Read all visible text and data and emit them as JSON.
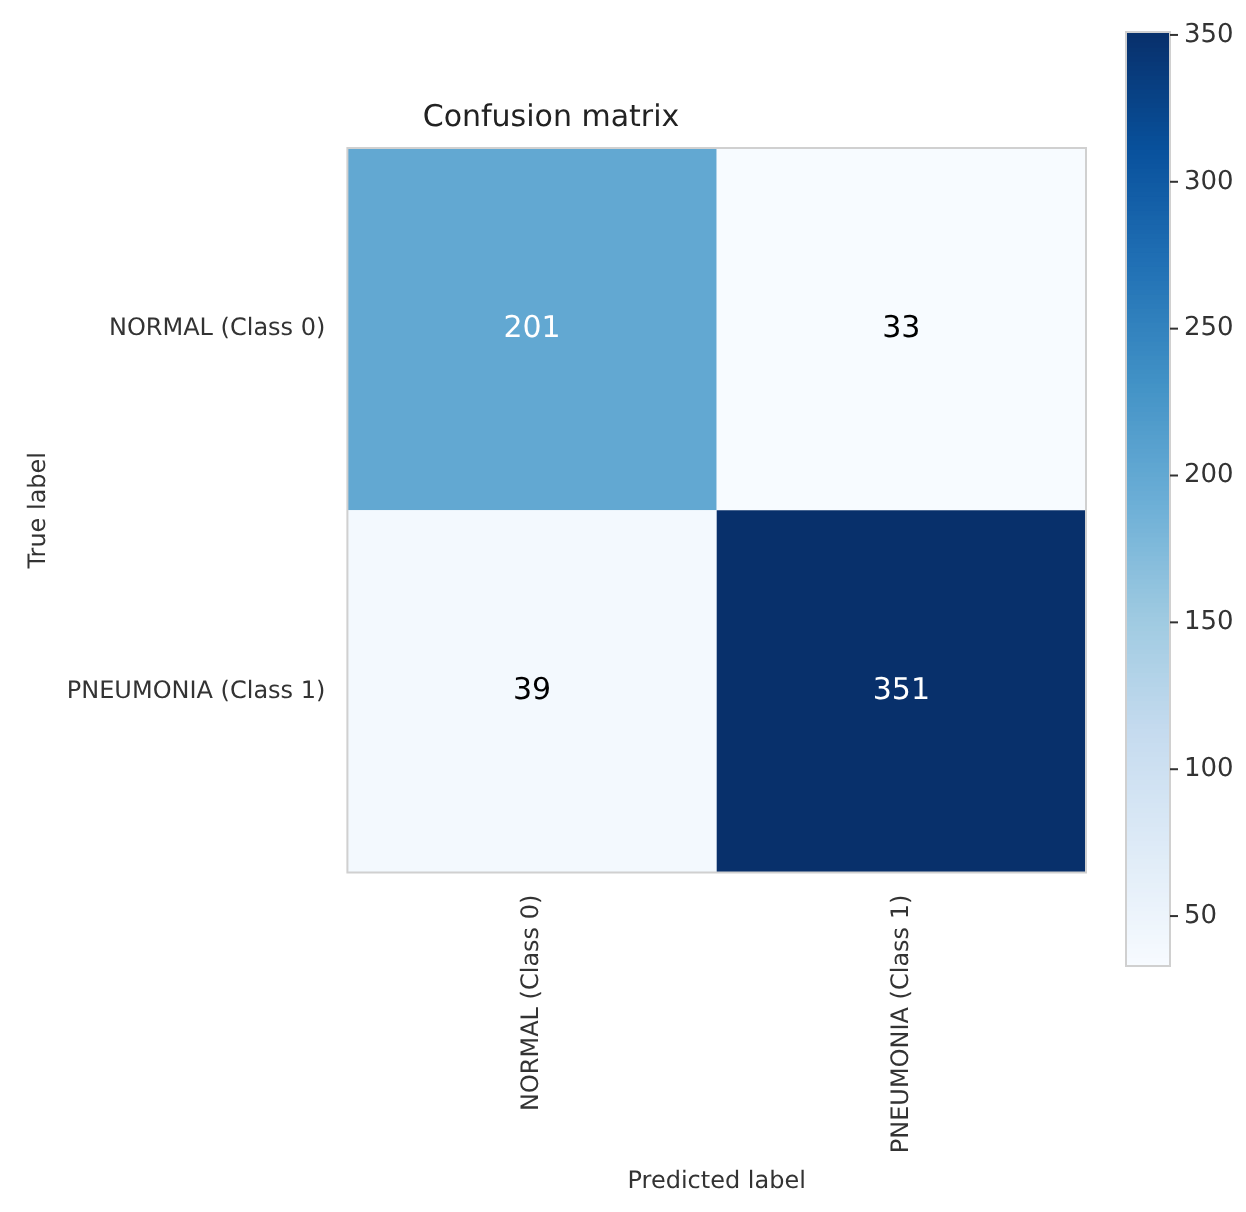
{
  "chart_data": {
    "type": "heatmap",
    "title": "Confusion matrix",
    "xlabel": "Predicted label",
    "ylabel": "True label",
    "categories": [
      "NORMAL (Class 0)",
      "PNEUMONIA (Class 1)"
    ],
    "y_categories": [
      "NORMAL (Class 0)",
      "PNEUMONIA (Class 1)"
    ],
    "cells": [
      [
        201,
        33
      ],
      [
        39,
        351
      ]
    ],
    "data_labels": true,
    "clim": [
      33,
      351
    ],
    "cticks": [
      50,
      100,
      150,
      200,
      250,
      300,
      350
    ]
  }
}
